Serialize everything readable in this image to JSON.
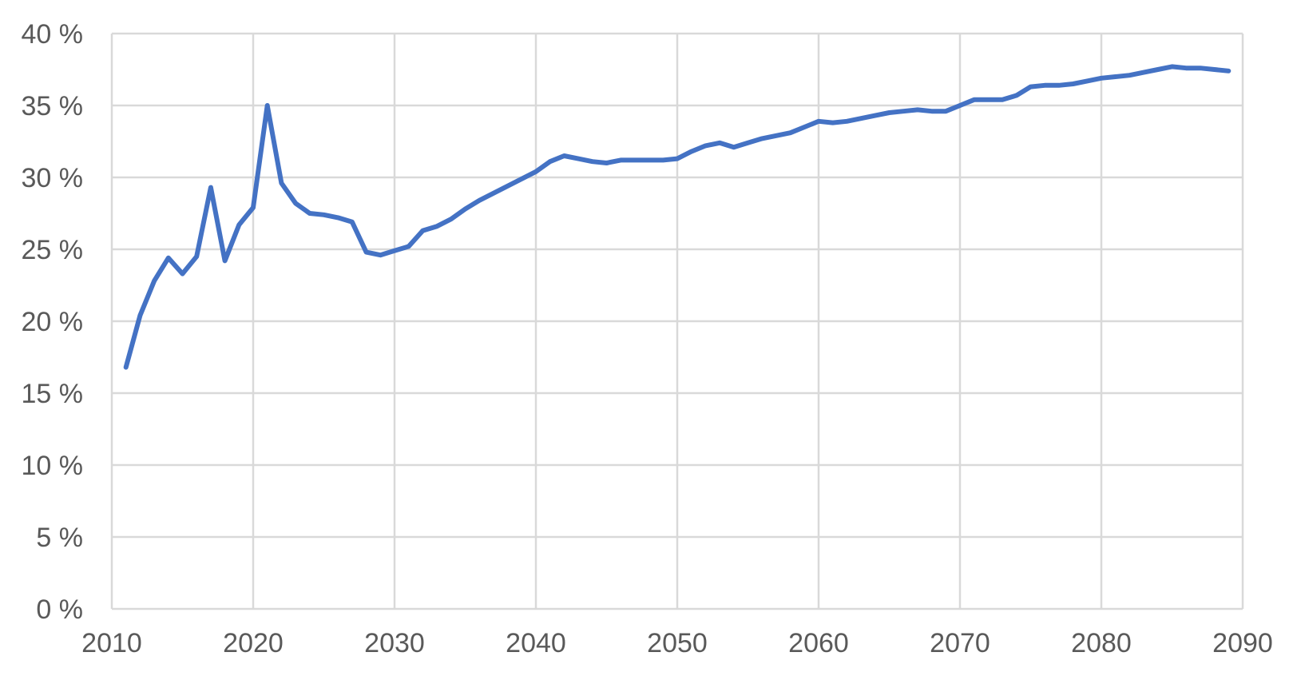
{
  "chart_data": {
    "type": "line",
    "title": "",
    "xlabel": "",
    "ylabel": "",
    "xlim": [
      2010,
      2090
    ],
    "ylim": [
      0,
      40
    ],
    "grid": true,
    "legend": "none",
    "x_ticks": [
      "2010",
      "2020",
      "2030",
      "2040",
      "2050",
      "2060",
      "2070",
      "2080",
      "2090"
    ],
    "y_ticks": [
      "0 %",
      "5 %",
      "10 %",
      "15 %",
      "20 %",
      "25 %",
      "30 %",
      "35 %",
      "40 %"
    ],
    "colors": {
      "series": "#4472c4",
      "grid": "#d9d9d9",
      "text": "#595959"
    },
    "series": [
      {
        "x": [
          2011,
          2012,
          2013,
          2014,
          2015,
          2016,
          2017,
          2018,
          2019,
          2020,
          2021,
          2022,
          2023,
          2024,
          2025,
          2026,
          2027,
          2028,
          2029,
          2030,
          2031,
          2032,
          2033,
          2034,
          2035,
          2036,
          2037,
          2038,
          2039,
          2040,
          2041,
          2042,
          2043,
          2044,
          2045,
          2046,
          2047,
          2048,
          2049,
          2050,
          2051,
          2052,
          2053,
          2054,
          2055,
          2056,
          2057,
          2058,
          2059,
          2060,
          2061,
          2062,
          2063,
          2064,
          2065,
          2066,
          2067,
          2068,
          2069,
          2070,
          2071,
          2072,
          2073,
          2074,
          2075,
          2076,
          2077,
          2078,
          2079,
          2080,
          2081,
          2082,
          2083,
          2084,
          2085,
          2086,
          2087,
          2088,
          2089
        ],
        "values": [
          16.8,
          20.4,
          22.8,
          24.4,
          23.3,
          24.5,
          29.3,
          24.2,
          26.7,
          27.9,
          35.0,
          29.6,
          28.2,
          27.5,
          27.4,
          27.2,
          26.9,
          24.8,
          24.6,
          24.9,
          25.2,
          26.3,
          26.6,
          27.1,
          27.8,
          28.4,
          28.9,
          29.4,
          29.9,
          30.4,
          31.1,
          31.5,
          31.3,
          31.1,
          31.0,
          31.2,
          31.2,
          31.2,
          31.2,
          31.3,
          31.8,
          32.2,
          32.4,
          32.1,
          32.4,
          32.7,
          32.9,
          33.1,
          33.5,
          33.9,
          33.8,
          33.9,
          34.1,
          34.3,
          34.5,
          34.6,
          34.7,
          34.6,
          34.6,
          35.0,
          35.4,
          35.4,
          35.4,
          35.7,
          36.3,
          36.4,
          36.4,
          36.5,
          36.7,
          36.9,
          37.0,
          37.1,
          37.3,
          37.5,
          37.7,
          37.6,
          37.6,
          37.5,
          37.4
        ]
      }
    ]
  }
}
